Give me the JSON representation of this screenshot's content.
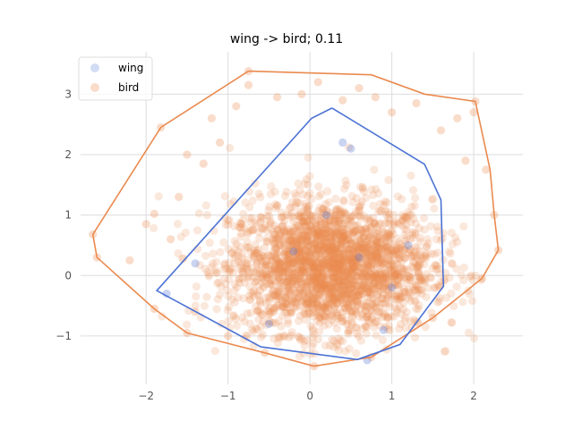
{
  "chart_data": {
    "type": "scatter",
    "title": "wing -> bird; 0.11",
    "xlabel": "",
    "ylabel": "",
    "xlim": [
      -2.8,
      2.6
    ],
    "ylim": [
      -1.8,
      3.7
    ],
    "xticks": [
      -2,
      -1,
      0,
      1,
      2
    ],
    "yticks": [
      -1,
      0,
      1,
      2,
      3
    ],
    "xtick_labels": [
      "−2",
      "−1",
      "0",
      "1",
      "2"
    ],
    "ytick_labels": [
      "−1",
      "0",
      "1",
      "2",
      "3"
    ],
    "grid": true,
    "legend_position": "top-left",
    "series": [
      {
        "name": "wing",
        "color": "#4c72d4",
        "marker_alpha": 0.2,
        "hull": [
          [
            0.27,
            2.77
          ],
          [
            1.4,
            1.84
          ],
          [
            1.6,
            1.25
          ],
          [
            1.63,
            -0.18
          ],
          [
            1.1,
            -1.14
          ],
          [
            0.58,
            -1.39
          ],
          [
            -0.6,
            -1.18
          ],
          [
            -1.87,
            -0.25
          ],
          [
            0.02,
            2.6
          ],
          [
            0.27,
            2.77
          ]
        ],
        "points": [
          [
            -1.75,
            -0.3
          ],
          [
            -1.4,
            0.2
          ],
          [
            0.4,
            2.2
          ],
          [
            0.5,
            2.1
          ],
          [
            0.7,
            -1.4
          ],
          [
            0.9,
            -0.9
          ],
          [
            1.2,
            0.5
          ],
          [
            -0.5,
            -0.8
          ],
          [
            0.2,
            1.0
          ],
          [
            0.6,
            0.3
          ],
          [
            -0.2,
            0.4
          ],
          [
            1.0,
            -0.2
          ]
        ]
      },
      {
        "name": "bird",
        "color": "#ea8a4f",
        "marker_alpha": 0.2,
        "hull": [
          [
            -0.75,
            3.38
          ],
          [
            0.75,
            3.32
          ],
          [
            1.4,
            3.0
          ],
          [
            2.02,
            2.88
          ],
          [
            2.2,
            1.75
          ],
          [
            2.25,
            1.0
          ],
          [
            2.3,
            0.42
          ],
          [
            2.1,
            -0.05
          ],
          [
            1.5,
            -0.7
          ],
          [
            0.75,
            -1.35
          ],
          [
            0.05,
            -1.5
          ],
          [
            -0.55,
            -1.28
          ],
          [
            -1.5,
            -0.95
          ],
          [
            -1.9,
            -0.55
          ],
          [
            -2.6,
            0.3
          ],
          [
            -2.65,
            0.68
          ],
          [
            -1.82,
            2.45
          ],
          [
            -0.75,
            3.38
          ]
        ],
        "outliers": [
          [
            -0.75,
            3.38
          ],
          [
            -0.75,
            3.15
          ],
          [
            -0.4,
            2.95
          ],
          [
            -0.1,
            3.0
          ],
          [
            0.4,
            2.9
          ],
          [
            0.8,
            2.95
          ],
          [
            1.0,
            2.7
          ],
          [
            1.3,
            2.85
          ],
          [
            1.8,
            2.6
          ],
          [
            2.02,
            2.88
          ],
          [
            2.0,
            2.7
          ],
          [
            2.15,
            1.75
          ],
          [
            2.25,
            1.0
          ],
          [
            2.3,
            0.42
          ],
          [
            -1.82,
            2.45
          ],
          [
            -1.5,
            2.0
          ],
          [
            -1.3,
            1.85
          ],
          [
            -1.6,
            1.3
          ],
          [
            -1.9,
            1.02
          ],
          [
            -2.0,
            0.85
          ],
          [
            -2.65,
            0.68
          ],
          [
            -2.6,
            0.3
          ],
          [
            -2.2,
            0.25
          ],
          [
            -1.9,
            -0.55
          ],
          [
            -1.5,
            -0.95
          ],
          [
            -0.55,
            -1.28
          ],
          [
            0.05,
            -1.5
          ],
          [
            0.75,
            -1.35
          ],
          [
            1.5,
            -0.7
          ],
          [
            2.1,
            -0.05
          ],
          [
            -1.2,
            2.6
          ],
          [
            -1.1,
            2.2
          ],
          [
            -0.9,
            2.8
          ],
          [
            0.1,
            3.2
          ],
          [
            0.6,
            3.1
          ],
          [
            1.6,
            2.4
          ],
          [
            1.9,
            1.9
          ],
          [
            -1.7,
            0.6
          ],
          [
            -1.4,
            -0.6
          ],
          [
            -1.0,
            -1.0
          ]
        ]
      }
    ]
  }
}
